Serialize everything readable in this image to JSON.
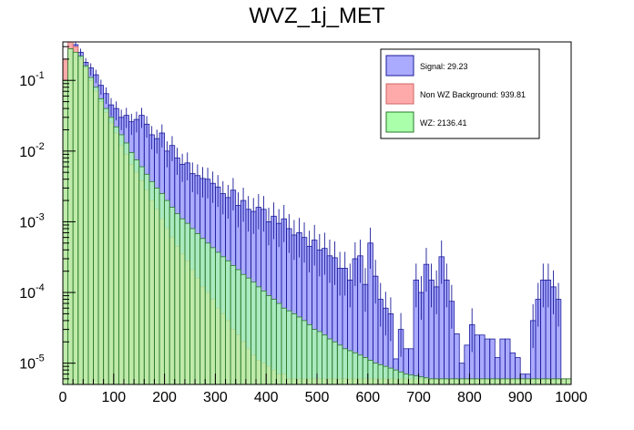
{
  "chart_data": {
    "type": "histogram",
    "title": "WVZ_1j_MET",
    "xlabel": "",
    "ylabel": "",
    "xlim": [
      0,
      1000
    ],
    "ylog": true,
    "ylim": [
      5e-06,
      0.35
    ],
    "bin_width": 10,
    "x_ticks": [
      0,
      100,
      200,
      300,
      400,
      500,
      600,
      700,
      800,
      900,
      1000
    ],
    "x_tick_labels": [
      "0",
      "100",
      "200",
      "300",
      "400",
      "500",
      "600",
      "700",
      "800",
      "900",
      "1000"
    ],
    "y_ticks": [
      1e-05,
      0.0001,
      0.001,
      0.01,
      0.1
    ],
    "y_tick_labels": [
      {
        "base": "10",
        "exp": "-5"
      },
      {
        "base": "10",
        "exp": "-4"
      },
      {
        "base": "10",
        "exp": "-3"
      },
      {
        "base": "10",
        "exp": "-2"
      },
      {
        "base": "10",
        "exp": "-1"
      }
    ],
    "legend_position": "top-right",
    "series": [
      {
        "name": "Signal",
        "legend_label": "Signal: 29.23",
        "fill": "#aaaaff",
        "line": "#1a1a99",
        "values": [
          0.1,
          0.3,
          0.32,
          0.25,
          0.18,
          0.15,
          0.12,
          0.085,
          0.065,
          0.045,
          0.04,
          0.03,
          0.032,
          0.026,
          0.028,
          0.032,
          0.024,
          0.017,
          0.015,
          0.018,
          0.01,
          0.012,
          0.008,
          0.0065,
          0.0068,
          0.0048,
          0.0045,
          0.0041,
          0.004,
          0.0035,
          0.0031,
          0.0025,
          0.0022,
          0.0028,
          0.0017,
          0.002,
          0.0015,
          0.0014,
          0.0016,
          0.0015,
          0.001,
          0.0012,
          0.00095,
          0.0011,
          0.0008,
          0.00065,
          0.0007,
          0.0006,
          0.00045,
          0.00055,
          0.0004,
          0.00042,
          0.00033,
          0.00031,
          0.00022,
          0.00022,
          0.00015,
          0.0003,
          0.00033,
          0.00013,
          0.0005,
          0.00017,
          8e-05,
          6e-05,
          5e-05,
          1.15e-05,
          3e-05,
          1.6e-05,
          1.6e-05,
          0.00015,
          0.0001,
          0.00025,
          0.00015,
          0.00012,
          0.00032,
          0.00015,
          7.5e-05,
          2.6e-05,
          1e-05,
          1.8e-05,
          3.5e-05,
          2.5e-05,
          2.5e-05,
          2.2e-05,
          2.2e-05,
          1.2e-05,
          2.2e-05,
          2.2e-05,
          1.4e-05,
          1.2e-05,
          7e-06,
          7e-06,
          4e-05,
          8e-05,
          0.00015,
          0.00015,
          0.00012,
          8e-05,
          6e-06,
          6e-06
        ]
      },
      {
        "name": "Non WZ Background",
        "legend_label": "Non WZ Background: 939.81",
        "fill": "#ffaaaa",
        "line": "#cc6666",
        "values": [
          0.2,
          0.35,
          0.3,
          0.2,
          0.15,
          0.1,
          0.07,
          0.05,
          0.035,
          0.025,
          0.018,
          0.012,
          0.009,
          0.0065,
          0.005,
          0.0038,
          0.0028,
          0.002,
          0.0015,
          0.0011,
          0.0008,
          0.0006,
          0.00045,
          0.00035,
          0.00028,
          0.00021,
          0.00016,
          0.00012,
          0.0001,
          8e-05,
          6e-05,
          5e-05,
          4e-05,
          3e-05,
          2.5e-05,
          2e-05,
          1.6e-05,
          1.3e-05,
          1.1e-05,
          1e-05,
          9e-06,
          8e-06,
          7e-06,
          7e-06,
          6e-06,
          6e-06,
          6e-06,
          6e-06,
          6e-06,
          6e-06,
          6e-06,
          6e-06,
          6e-06,
          6e-06,
          6e-06,
          6e-06,
          6e-06,
          6e-06,
          6e-06,
          6e-06,
          6e-06,
          6e-06,
          6e-06,
          6e-06,
          6e-06,
          6e-06,
          6e-06,
          6e-06,
          6e-06,
          6e-06,
          6e-06,
          6e-06,
          6e-06,
          6e-06,
          6e-06,
          6e-06,
          6e-06,
          6e-06,
          6e-06,
          6e-06,
          6e-06,
          6e-06,
          6e-06,
          6e-06,
          6e-06,
          6e-06,
          6e-06,
          6e-06,
          6e-06,
          6e-06,
          6e-06,
          6e-06,
          6e-06,
          6e-06,
          6e-06,
          6e-06,
          6e-06,
          6e-06,
          6e-06,
          6e-06
        ]
      },
      {
        "name": "WZ",
        "legend_label": "WZ: 2136.41",
        "fill": "#aaffaa",
        "line": "#2a7a2a",
        "values": [
          0.1,
          0.28,
          0.25,
          0.22,
          0.16,
          0.11,
          0.08,
          0.055,
          0.04,
          0.03,
          0.022,
          0.017,
          0.013,
          0.0095,
          0.0075,
          0.006,
          0.0047,
          0.0037,
          0.003,
          0.0025,
          0.002,
          0.0016,
          0.0013,
          0.0011,
          0.00095,
          0.0008,
          0.00068,
          0.00058,
          0.0005,
          0.00043,
          0.00037,
          0.00032,
          0.00028,
          0.00024,
          0.00021,
          0.00018,
          0.00016,
          0.00014,
          0.00012,
          0.000105,
          9e-05,
          8e-05,
          7e-05,
          6e-05,
          5.5e-05,
          5e-05,
          4.5e-05,
          4e-05,
          3.5e-05,
          3e-05,
          2.8e-05,
          2.5e-05,
          2.2e-05,
          2e-05,
          1.8e-05,
          1.6e-05,
          1.5e-05,
          1.4e-05,
          1.3e-05,
          1.2e-05,
          1.1e-05,
          1e-05,
          9.5e-06,
          9e-06,
          8.5e-06,
          8e-06,
          7.5e-06,
          7e-06,
          6.8e-06,
          6.6e-06,
          6.4e-06,
          6.2e-06,
          6e-06,
          6e-06,
          6e-06,
          6e-06,
          6e-06,
          6e-06,
          6e-06,
          6e-06,
          6e-06,
          6e-06,
          6e-06,
          6e-06,
          6e-06,
          6e-06,
          6e-06,
          6e-06,
          6e-06,
          6e-06,
          6e-06,
          6e-06,
          6e-06,
          6e-06,
          6e-06,
          6e-06,
          6e-06,
          6e-06,
          6e-06,
          6e-06
        ]
      }
    ]
  }
}
